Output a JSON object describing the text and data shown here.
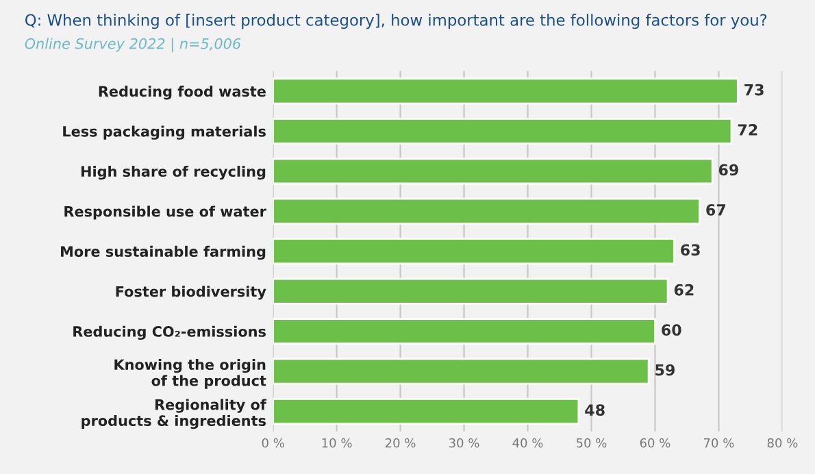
{
  "chart_data": {
    "type": "bar",
    "orientation": "horizontal",
    "title": "Q: When thinking of [insert product category], how important are the following factors for you?",
    "subtitle": "Online Survey 2022 | n=5,006",
    "categories": [
      "Reducing food waste",
      "Less packaging materials",
      "High share of recycling",
      "Responsible use of water",
      "More sustainable farming",
      "Foster biodiversity",
      "Reducing CO₂-emissions",
      "Knowing the origin\nof the product",
      "Regionality of\nproducts & ingredients"
    ],
    "values": [
      73,
      72,
      69,
      67,
      63,
      62,
      60,
      59,
      48
    ],
    "color": "#6cc04a",
    "data_labels": true,
    "xlim": [
      0,
      80
    ],
    "xticks": [
      {
        "value": 0,
        "label": "0 %"
      },
      {
        "value": 10,
        "label": "10 %"
      },
      {
        "value": 20,
        "label": "20 %"
      },
      {
        "value": 30,
        "label": "30 %"
      },
      {
        "value": 40,
        "label": "40 %"
      },
      {
        "value": 50,
        "label": "50 %"
      },
      {
        "value": 60,
        "label": "60 %"
      },
      {
        "value": 70,
        "label": "70 %"
      },
      {
        "value": 80,
        "label": "80 %"
      }
    ],
    "grid": "x"
  }
}
